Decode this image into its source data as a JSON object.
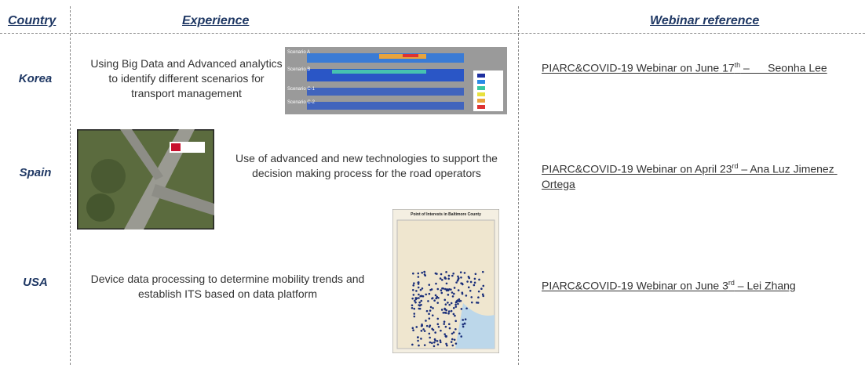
{
  "table": {
    "headers": [
      "Country",
      "Experience",
      "Webinar reference"
    ],
    "rows": [
      {
        "country": "Korea",
        "experience": "Using Big Data and Advanced analytics to identify different scenarios for transport management",
        "webinar": {
          "text": "PIARC&COVID-19 Webinar on June 17",
          "sup": "th",
          "rest": " –      Seonha Lee"
        },
        "image_labels": [
          "Scenario A",
          "Scenario B",
          "Scenario C-1",
          "Scenario C-2"
        ]
      },
      {
        "country": "Spain",
        "experience": "Use of advanced and new technologies to support the decision making process for the road operators",
        "webinar": {
          "text": "PIARC&COVID-19 Webinar on April 23",
          "sup": "rd",
          "rest": " – Ana Luz Jimenez Ortega"
        }
      },
      {
        "country": "USA",
        "experience": "Device data processing to determine mobility trends and establish ITS based on data platform",
        "webinar": {
          "text": "PIARC&COVID-19 Webinar on June 3",
          "sup": "rd",
          "rest": " – Lei Zhang"
        },
        "image_title": "Point of Interests in Baltimore County"
      }
    ]
  }
}
